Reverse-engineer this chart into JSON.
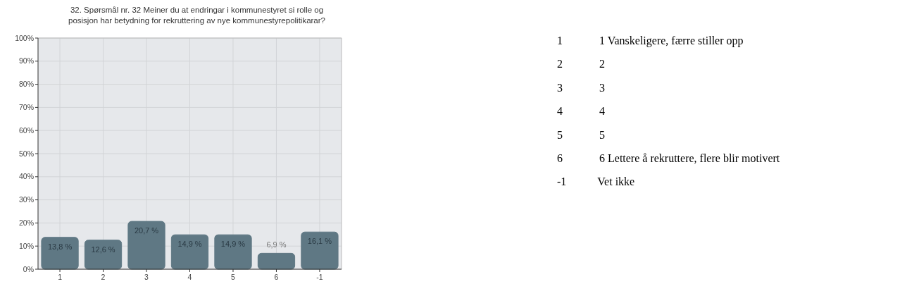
{
  "chart_data": [
    {
      "type": "bar",
      "title": "32. Spørsmål nr. 32 Meiner du at endringar i kommunestyret si rolle og posisjon har betydning for rekruttering av nye kommunestyrepolitikarar?",
      "categories": [
        "1",
        "2",
        "3",
        "4",
        "5",
        "6",
        "-1"
      ],
      "values": [
        13.8,
        12.6,
        20.7,
        14.9,
        14.9,
        6.9,
        16.1
      ],
      "value_labels": [
        "13,8 %",
        "12,6 %",
        "20,7 %",
        "14,9 %",
        "14,9 %",
        "6,9 %",
        "16,1 %"
      ],
      "color": "#5f7884",
      "ylim": [
        0,
        100
      ],
      "yticks": [
        {
          "value": 0,
          "label": "0%"
        },
        {
          "value": 10,
          "label": "10%"
        },
        {
          "value": 20,
          "label": "20%"
        },
        {
          "value": 30,
          "label": "30%"
        },
        {
          "value": 40,
          "label": "40%"
        },
        {
          "value": 50,
          "label": "50%"
        },
        {
          "value": 60,
          "label": "60%"
        },
        {
          "value": 70,
          "label": "70%"
        },
        {
          "value": 80,
          "label": "80%"
        },
        {
          "value": 90,
          "label": "90%"
        },
        {
          "value": 100,
          "label": "100%"
        }
      ],
      "grid": true
    },
    {
      "type": "other",
      "annotations": [
        "1",
        "1 Vanskeligere, færre stiller opp",
        "2",
        "2",
        "3",
        "3",
        "4",
        "4",
        "5",
        "5",
        "6",
        "6 Lettere å rekruttere, flere blir motivert",
        "-1",
        "Vet ikke"
      ]
    }
  ]
}
